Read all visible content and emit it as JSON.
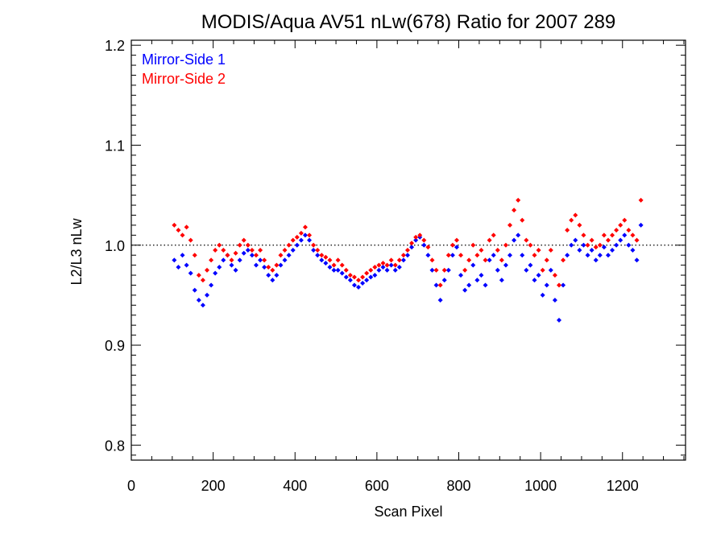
{
  "chart_data": {
    "type": "scatter",
    "title": "MODIS/Aqua AV51 nLw(678) Ratio for 2007 289",
    "xlabel": "Scan Pixel",
    "ylabel": "L2/L3 nLw",
    "xlim": [
      0,
      1354
    ],
    "ylim": [
      0.785,
      1.205
    ],
    "xticks": [
      0,
      200,
      400,
      600,
      800,
      1000,
      1200
    ],
    "xtick_labels": [
      "0",
      "200",
      "400",
      "600",
      "800",
      "1000",
      "1200"
    ],
    "yticks": [
      0.8,
      0.9,
      1.0,
      1.1,
      1.2
    ],
    "ytick_labels": [
      "0.8",
      "0.9",
      "1.0",
      "1.1",
      "1.2"
    ],
    "reference_line_y": 1.0,
    "legend_position": "top-left",
    "grid": false,
    "series": [
      {
        "name": "Mirror-Side 1",
        "color": "#0000ff",
        "x": [
          105,
          115,
          125,
          135,
          145,
          155,
          165,
          175,
          185,
          195,
          205,
          215,
          225,
          235,
          245,
          255,
          265,
          275,
          285,
          295,
          305,
          315,
          325,
          335,
          345,
          355,
          365,
          375,
          385,
          395,
          405,
          415,
          425,
          435,
          445,
          455,
          465,
          475,
          485,
          495,
          505,
          515,
          525,
          535,
          545,
          555,
          565,
          575,
          585,
          595,
          605,
          615,
          625,
          635,
          645,
          655,
          665,
          675,
          685,
          695,
          705,
          715,
          725,
          735,
          745,
          755,
          765,
          775,
          785,
          795,
          805,
          815,
          825,
          835,
          845,
          855,
          865,
          875,
          885,
          895,
          905,
          915,
          925,
          935,
          945,
          955,
          965,
          975,
          985,
          995,
          1005,
          1015,
          1025,
          1035,
          1045,
          1055,
          1065,
          1075,
          1085,
          1095,
          1105,
          1115,
          1125,
          1135,
          1145,
          1155,
          1165,
          1175,
          1185,
          1195,
          1205,
          1215,
          1225,
          1235,
          1245
        ],
        "y": [
          0.985,
          0.978,
          0.99,
          0.98,
          0.972,
          0.955,
          0.945,
          0.94,
          0.95,
          0.96,
          0.972,
          0.978,
          0.985,
          0.99,
          0.98,
          0.975,
          0.985,
          0.992,
          0.995,
          0.99,
          0.98,
          0.985,
          0.978,
          0.97,
          0.965,
          0.97,
          0.98,
          0.985,
          0.99,
          0.995,
          1.0,
          1.005,
          1.01,
          1.005,
          0.995,
          0.99,
          0.985,
          0.982,
          0.978,
          0.975,
          0.975,
          0.972,
          0.968,
          0.965,
          0.96,
          0.958,
          0.962,
          0.965,
          0.968,
          0.97,
          0.975,
          0.978,
          0.975,
          0.98,
          0.975,
          0.978,
          0.985,
          0.99,
          0.998,
          1.005,
          1.008,
          1.0,
          0.99,
          0.975,
          0.96,
          0.945,
          0.965,
          0.975,
          0.99,
          0.998,
          0.97,
          0.955,
          0.96,
          0.98,
          0.965,
          0.97,
          0.96,
          0.985,
          0.99,
          0.975,
          0.965,
          0.98,
          0.99,
          1.005,
          1.01,
          0.99,
          0.975,
          0.98,
          0.965,
          0.97,
          0.95,
          0.96,
          0.975,
          0.945,
          0.925,
          0.96,
          0.99,
          1.0,
          1.005,
          0.995,
          1.0,
          0.99,
          0.995,
          0.985,
          0.99,
          0.998,
          0.99,
          0.995,
          1.0,
          1.005,
          1.01,
          1.0,
          0.995,
          0.985,
          1.02
        ]
      },
      {
        "name": "Mirror-Side 2",
        "color": "#ff0000",
        "x": [
          105,
          115,
          125,
          135,
          145,
          155,
          165,
          175,
          185,
          195,
          205,
          215,
          225,
          235,
          245,
          255,
          265,
          275,
          285,
          295,
          305,
          315,
          325,
          335,
          345,
          355,
          365,
          375,
          385,
          395,
          405,
          415,
          425,
          435,
          445,
          455,
          465,
          475,
          485,
          495,
          505,
          515,
          525,
          535,
          545,
          555,
          565,
          575,
          585,
          595,
          605,
          615,
          625,
          635,
          645,
          655,
          665,
          675,
          685,
          695,
          705,
          715,
          725,
          735,
          745,
          755,
          765,
          775,
          785,
          795,
          805,
          815,
          825,
          835,
          845,
          855,
          865,
          875,
          885,
          895,
          905,
          915,
          925,
          935,
          945,
          955,
          965,
          975,
          985,
          995,
          1005,
          1015,
          1025,
          1035,
          1045,
          1055,
          1065,
          1075,
          1085,
          1095,
          1105,
          1115,
          1125,
          1135,
          1145,
          1155,
          1165,
          1175,
          1185,
          1195,
          1205,
          1215,
          1225,
          1235,
          1245
        ],
        "y": [
          1.02,
          1.015,
          1.01,
          1.018,
          1.005,
          0.99,
          0.97,
          0.965,
          0.975,
          0.985,
          0.995,
          1.0,
          0.995,
          0.99,
          0.985,
          0.992,
          1.0,
          1.005,
          1.0,
          0.995,
          0.99,
          0.995,
          0.985,
          0.978,
          0.975,
          0.98,
          0.99,
          0.995,
          1.0,
          1.005,
          1.008,
          1.012,
          1.018,
          1.01,
          1.0,
          0.995,
          0.99,
          0.988,
          0.985,
          0.98,
          0.985,
          0.98,
          0.975,
          0.97,
          0.968,
          0.965,
          0.968,
          0.972,
          0.975,
          0.978,
          0.98,
          0.982,
          0.98,
          0.985,
          0.98,
          0.985,
          0.99,
          0.995,
          1.002,
          1.008,
          1.01,
          1.005,
          0.998,
          0.985,
          0.975,
          0.96,
          0.975,
          0.99,
          1.0,
          1.005,
          0.99,
          0.975,
          0.985,
          1.0,
          0.99,
          0.995,
          0.985,
          1.005,
          1.01,
          0.995,
          0.985,
          1.0,
          1.02,
          1.035,
          1.045,
          1.025,
          1.005,
          1.0,
          0.99,
          0.995,
          0.975,
          0.985,
          0.995,
          0.97,
          0.96,
          0.985,
          1.015,
          1.025,
          1.03,
          1.02,
          1.01,
          1.0,
          1.005,
          0.998,
          1.0,
          1.01,
          1.005,
          1.01,
          1.015,
          1.02,
          1.025,
          1.015,
          1.01,
          1.005,
          1.045
        ]
      }
    ]
  }
}
